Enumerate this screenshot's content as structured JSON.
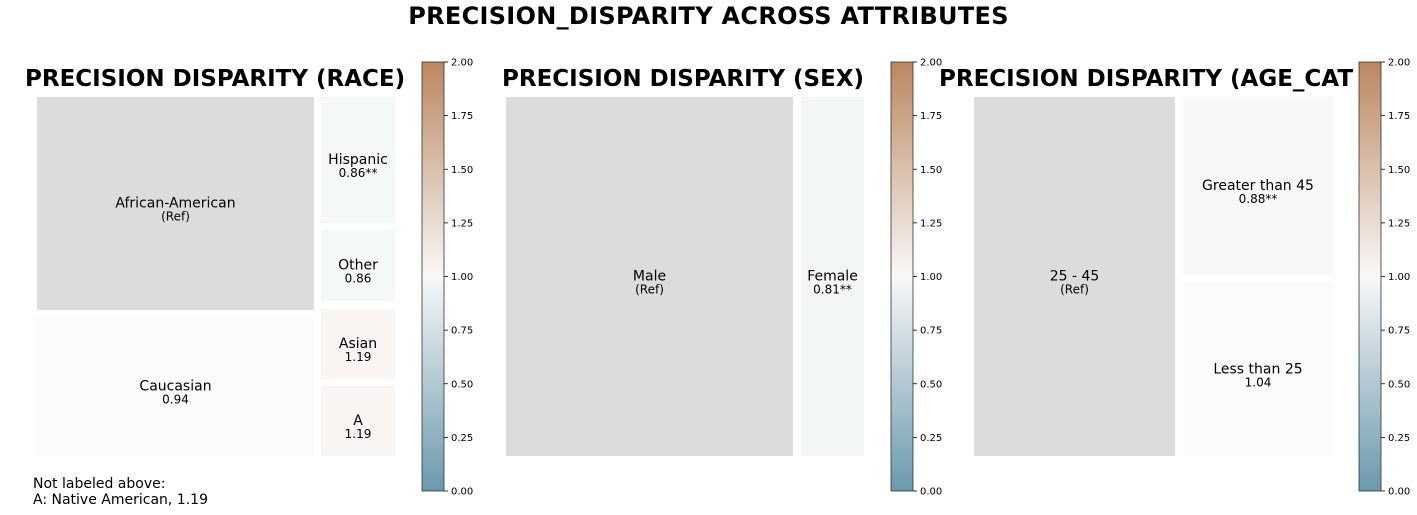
{
  "title": "PRECISION_DISPARITY ACROSS ATTRIBUTES",
  "colors": {
    "ref": "#dcdcdc",
    "low": "#5a8ea4",
    "mid": "#f7f7f7",
    "high": "#b47a4e",
    "tile_gap": "#ffffff"
  },
  "chart_data": [
    {
      "type": "treemap",
      "title": "PRECISION DISPARITY (RACE)",
      "colorbar": {
        "min": 0.0,
        "max": 2.0,
        "ticks": [
          "0.00",
          "0.25",
          "0.50",
          "0.75",
          "1.00",
          "1.25",
          "1.50",
          "1.75",
          "2.00"
        ]
      },
      "tiles": [
        {
          "label": "African-American",
          "value_label": "(Ref)",
          "disparity": 1.0,
          "reference": true
        },
        {
          "label": "Caucasian",
          "value_label": "0.94",
          "disparity": 0.94,
          "reference": false
        },
        {
          "label": "Hispanic",
          "value_label": "0.86**",
          "disparity": 0.86,
          "reference": false
        },
        {
          "label": "Other",
          "value_label": "0.86",
          "disparity": 0.86,
          "reference": false
        },
        {
          "label": "Asian",
          "value_label": "1.19",
          "disparity": 1.19,
          "reference": false
        },
        {
          "label": "A",
          "value_label": "1.19",
          "disparity": 1.19,
          "reference": false
        }
      ],
      "note_lines": [
        "Not labeled above:",
        "A: Native American, 1.19"
      ]
    },
    {
      "type": "treemap",
      "title": "PRECISION DISPARITY (SEX)",
      "colorbar": {
        "min": 0.0,
        "max": 2.0,
        "ticks": [
          "0.00",
          "0.25",
          "0.50",
          "0.75",
          "1.00",
          "1.25",
          "1.50",
          "1.75",
          "2.00"
        ]
      },
      "tiles": [
        {
          "label": "Male",
          "value_label": "(Ref)",
          "disparity": 1.0,
          "reference": true
        },
        {
          "label": "Female",
          "value_label": "0.81**",
          "disparity": 0.81,
          "reference": false
        }
      ],
      "note_lines": []
    },
    {
      "type": "treemap",
      "title": "PRECISION DISPARITY (AGE_CAT",
      "colorbar": {
        "min": 0.0,
        "max": 2.0,
        "ticks": [
          "0.00",
          "0.25",
          "0.50",
          "0.75",
          "1.00",
          "1.25",
          "1.50",
          "1.75",
          "2.00"
        ]
      },
      "tiles": [
        {
          "label": "25 - 45",
          "value_label": "(Ref)",
          "disparity": 1.0,
          "reference": true
        },
        {
          "label": "Greater than 45",
          "value_label": "0.88**",
          "disparity": 0.88,
          "reference": false
        },
        {
          "label": "Less than 25",
          "value_label": "1.04",
          "disparity": 1.04,
          "reference": false
        }
      ],
      "note_lines": []
    }
  ]
}
